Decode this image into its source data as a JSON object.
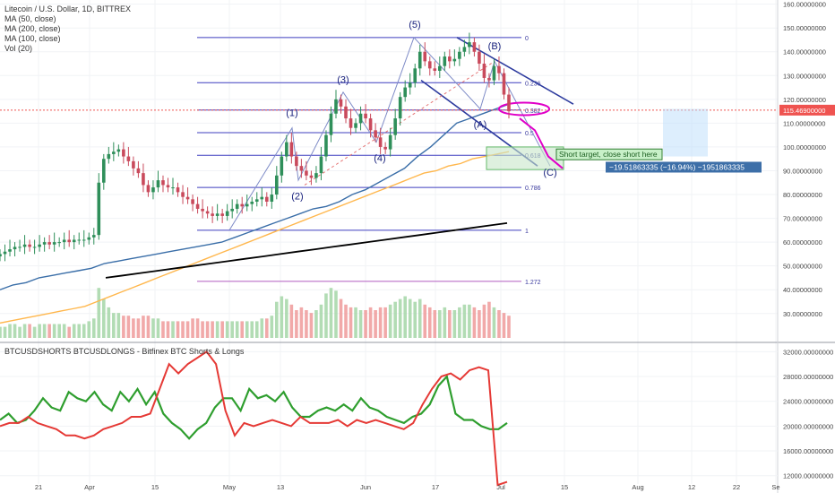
{
  "header": {
    "title": "Litecoin / U.S. Dollar, 1D, BITTREX",
    "indicators": [
      "MA (50, close)",
      "MA (200, close)",
      "MA (100, close)",
      "Vol (20)"
    ],
    "lower_title": "BTCUSDSHORTS BTCUSDLONGS - Bitfinex BTC Shorts & Longs"
  },
  "colors": {
    "up": "#26a69a",
    "down": "#ef5350",
    "ma50": "#2962ff",
    "ma100": "#ffb74d",
    "ma200": "#000000",
    "fib": "#3f3fbf",
    "magenta": "#e000c8",
    "shorts": "#2e9e2e",
    "longs": "#e53935"
  },
  "chart_data": [
    {
      "type": "candlestick",
      "title": "Litecoin / U.S. Dollar, 1D, BITTREX",
      "x_ticks": [
        "21",
        "Apr",
        "15",
        "May",
        "13",
        "Jun",
        "17",
        "Jul",
        "15",
        "Aug",
        "12",
        "22",
        "Se"
      ],
      "y_ticks": [
        "160.00000000",
        "150.00000000",
        "140.00000000",
        "130.00000000",
        "120.00000000",
        "110.00000000",
        "100.00000000",
        "90.00000000",
        "80.00000000",
        "70.00000000",
        "60.00000000",
        "50.00000000",
        "40.00000000",
        "30.00000000"
      ],
      "ylim": [
        22,
        161
      ],
      "last_price": "115.46900000",
      "close_series": [
        55,
        56,
        57,
        58,
        58,
        59,
        58,
        58,
        59,
        60,
        59,
        60,
        60,
        61,
        60,
        61,
        61,
        61,
        62,
        63,
        85,
        95,
        97,
        98,
        99,
        96,
        94,
        91,
        89,
        84,
        81,
        83,
        86,
        84,
        83,
        83,
        81,
        79,
        78,
        76,
        74,
        73,
        72,
        71,
        72,
        71,
        73,
        74,
        76,
        75,
        76,
        77,
        78,
        79,
        77,
        80,
        88,
        96,
        102,
        96,
        92,
        90,
        88,
        87,
        89,
        96,
        105,
        114,
        120,
        117,
        112,
        108,
        110,
        114,
        112,
        107,
        104,
        100,
        99,
        105,
        112,
        121,
        125,
        127,
        133,
        140,
        136,
        133,
        132,
        134,
        138,
        136,
        137,
        140,
        142,
        144,
        140,
        135,
        129,
        128,
        134,
        131,
        122,
        115
      ],
      "volume_series": [
        4,
        4,
        5,
        5,
        4,
        5,
        5,
        4,
        5,
        5,
        5,
        5,
        5,
        5,
        4,
        5,
        5,
        5,
        6,
        7,
        18,
        14,
        11,
        9,
        9,
        8,
        8,
        7,
        7,
        8,
        8,
        7,
        7,
        6,
        6,
        6,
        6,
        6,
        6,
        7,
        7,
        6,
        6,
        6,
        6,
        6,
        6,
        6,
        6,
        6,
        6,
        6,
        6,
        7,
        7,
        8,
        13,
        15,
        14,
        12,
        10,
        11,
        10,
        9,
        10,
        12,
        16,
        18,
        17,
        14,
        12,
        11,
        11,
        10,
        10,
        11,
        10,
        11,
        11,
        12,
        13,
        14,
        15,
        14,
        13,
        14,
        12,
        11,
        10,
        10,
        11,
        10,
        10,
        11,
        12,
        12,
        11,
        10,
        12,
        13,
        11,
        10,
        9,
        8
      ],
      "ma50_series": [
        40,
        42,
        43,
        45,
        46,
        47,
        48,
        49,
        51,
        52,
        53,
        54,
        55,
        56,
        57,
        58,
        59,
        60,
        62,
        64,
        66,
        68,
        70,
        72,
        74,
        75,
        77,
        80,
        82,
        85,
        88,
        91,
        96,
        100,
        105,
        110,
        112,
        114,
        116,
        118
      ],
      "ma100_series": [
        26,
        27,
        28,
        29,
        30,
        31,
        32,
        33,
        35,
        37,
        39,
        41,
        43,
        45,
        47,
        49,
        51,
        53,
        55,
        57,
        59,
        61,
        63,
        65,
        67,
        69,
        71,
        73,
        75,
        77,
        79,
        81,
        83,
        85,
        87,
        89,
        90,
        92,
        93,
        95,
        96,
        97,
        98
      ],
      "ma200_series": [
        45,
        46,
        47,
        48,
        49,
        50,
        51,
        52,
        53,
        54,
        55,
        56,
        57,
        58,
        59,
        60,
        61,
        62,
        63,
        64,
        65,
        66,
        67,
        68
      ],
      "fib_levels": [
        {
          "label": "0",
          "value": 146
        },
        {
          "label": "0.236",
          "value": 127
        },
        {
          "label": "0.382",
          "value": 115.5
        },
        {
          "label": "0.5",
          "value": 106
        },
        {
          "label": "0.618",
          "value": 96.5
        },
        {
          "label": "0.786",
          "value": 83
        },
        {
          "label": "1",
          "value": 65
        },
        {
          "label": "1.272",
          "value": 43.5
        }
      ],
      "wave_labels": [
        "(5)",
        "(3)",
        "(1)",
        "(2)",
        "(4)",
        "(B)",
        "(A)",
        "(C)"
      ],
      "annotations": {
        "target_note": "Short target, close short here",
        "measure_note": "−19.51863335 (−16.94%) −1951863335"
      }
    },
    {
      "type": "line",
      "title": "BTCUSDSHORTS BTCUSDLONGS - Bitfinex BTC Shorts & Longs",
      "y_ticks": [
        "32000.00000000",
        "28000.00000000",
        "24000.00000000",
        "20000.00000000",
        "16000.00000000",
        "12000.00000000"
      ],
      "ylim": [
        9500,
        33500
      ],
      "series": [
        {
          "values": [
            21000,
            22000,
            20500,
            21000,
            22500,
            24500,
            23000,
            22500,
            25500,
            24500,
            24000,
            25500,
            23500,
            22500,
            25500,
            24000,
            26000,
            23500,
            25500,
            22000,
            20500,
            19500,
            18000,
            19500,
            20500,
            23000,
            24500,
            24500,
            22500,
            26000,
            24500,
            25000,
            24000,
            25500,
            23000,
            21500,
            21500,
            22500,
            23000,
            22500,
            23500,
            22500,
            24500,
            23000,
            22500,
            21500,
            21000,
            20500,
            21500,
            22000,
            23500,
            26500,
            28000,
            22000,
            21000,
            21000,
            20000,
            19500,
            19500,
            20500
          ]
        },
        {
          "values": [
            20000,
            20500,
            20500,
            21500,
            20500,
            20000,
            19500,
            18500,
            18500,
            18000,
            18500,
            19500,
            20000,
            20500,
            21500,
            21500,
            22000,
            26000,
            30000,
            28500,
            30000,
            31000,
            32000,
            30000,
            22500,
            18500,
            20500,
            20000,
            20500,
            21000,
            20500,
            20000,
            21500,
            20500,
            20500,
            20500,
            21000,
            20000,
            21000,
            20500,
            21000,
            20500,
            20000,
            19500,
            20500,
            23500,
            26000,
            28000,
            28500,
            27500,
            29000,
            29500,
            29000,
            10500,
            11000
          ]
        }
      ]
    }
  ]
}
